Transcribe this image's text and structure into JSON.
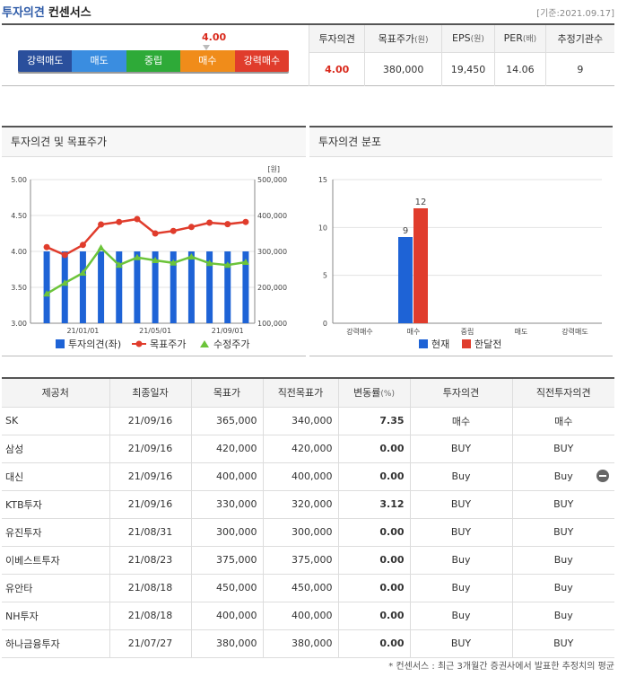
{
  "header": {
    "title": "투자의견",
    "subtitle": "컨센서스",
    "date_note": "[기준:2021.09.17]"
  },
  "gauge": {
    "value": "4.00",
    "score": 4.0,
    "segments": [
      "강력매도",
      "매도",
      "중립",
      "매수",
      "강력매수"
    ]
  },
  "summary": {
    "headers": [
      "투자의견",
      "목표주가",
      "EPS",
      "PER",
      "추정기관수"
    ],
    "units": [
      "",
      "(원)",
      "(원)",
      "(배)",
      ""
    ],
    "values": [
      "4.00",
      "380,000",
      "19,450",
      "14.06",
      "9"
    ]
  },
  "left_panel": {
    "title": "투자의견 및 목표주가"
  },
  "right_panel": {
    "title": "투자의견 분포"
  },
  "chart_data": [
    {
      "type": "bar+line",
      "title": "투자의견 및 목표주가",
      "x_ticks": [
        "21/01/01",
        "21/05/01",
        "21/09/01"
      ],
      "y_left": {
        "ticks": [
          "5.00",
          "4.50",
          "4.00",
          "3.50",
          "3.00"
        ],
        "ylim": [
          3.0,
          5.0
        ]
      },
      "y_right": {
        "label": "[원]",
        "ticks": [
          "500,000",
          "400,000",
          "300,000",
          "200,000",
          "100,000"
        ],
        "ylim": [
          100000,
          500000
        ]
      },
      "series": [
        {
          "name": "투자의견(좌)",
          "kind": "bar",
          "color": "#1e63d6",
          "values": [
            4,
            4,
            4,
            4,
            4,
            4,
            4,
            4,
            4,
            4,
            4,
            4
          ]
        },
        {
          "name": "목표주가",
          "kind": "line",
          "color": "#e03c2c",
          "values": [
            312000,
            290000,
            318000,
            375000,
            382000,
            390000,
            350000,
            357000,
            368000,
            380000,
            376000,
            382000
          ]
        },
        {
          "name": "수정주가",
          "kind": "line",
          "color": "#6cc43a",
          "values": [
            182000,
            212000,
            240000,
            310000,
            262000,
            283000,
            275000,
            268000,
            285000,
            267000,
            262000,
            270000
          ]
        }
      ],
      "legend": [
        "투자의견(좌)",
        "목표주가",
        "수정주가"
      ]
    },
    {
      "type": "bar",
      "title": "투자의견 분포",
      "categories": [
        "강력매수",
        "매수",
        "중립",
        "매도",
        "강력매도"
      ],
      "ylim": [
        0,
        15
      ],
      "y_ticks": [
        "15",
        "10",
        "5",
        "0"
      ],
      "series": [
        {
          "name": "현재",
          "color": "#1e63d6",
          "values": [
            0,
            9,
            0,
            0,
            0
          ]
        },
        {
          "name": "한달전",
          "color": "#e03c2c",
          "values": [
            0,
            12,
            0,
            0,
            0
          ]
        }
      ],
      "data_labels": [
        "9",
        "12"
      ]
    }
  ],
  "table": {
    "headers": [
      "제공처",
      "최종일자",
      "목표가",
      "직전목표가",
      "변동률",
      "투자의견",
      "직전투자의견"
    ],
    "unit": "(%)",
    "rows": [
      [
        "SK",
        "21/09/16",
        "365,000",
        "340,000",
        "7.35",
        "매수",
        "매수"
      ],
      [
        "삼성",
        "21/09/16",
        "420,000",
        "420,000",
        "0.00",
        "BUY",
        "BUY"
      ],
      [
        "대신",
        "21/09/16",
        "400,000",
        "400,000",
        "0.00",
        "Buy",
        "Buy"
      ],
      [
        "KTB투자",
        "21/09/16",
        "330,000",
        "320,000",
        "3.12",
        "BUY",
        "BUY"
      ],
      [
        "유진투자",
        "21/08/31",
        "300,000",
        "300,000",
        "0.00",
        "BUY",
        "BUY"
      ],
      [
        "이베스트투자",
        "21/08/23",
        "375,000",
        "375,000",
        "0.00",
        "Buy",
        "Buy"
      ],
      [
        "유안타",
        "21/08/18",
        "450,000",
        "450,000",
        "0.00",
        "Buy",
        "Buy"
      ],
      [
        "NH투자",
        "21/08/18",
        "400,000",
        "400,000",
        "0.00",
        "Buy",
        "Buy"
      ],
      [
        "하나금융투자",
        "21/07/27",
        "380,000",
        "380,000",
        "0.00",
        "BUY",
        "BUY"
      ]
    ]
  },
  "footnote": "* 컨센서스 : 최근 3개월간 증권사에서 발표한 추정치의 평균"
}
